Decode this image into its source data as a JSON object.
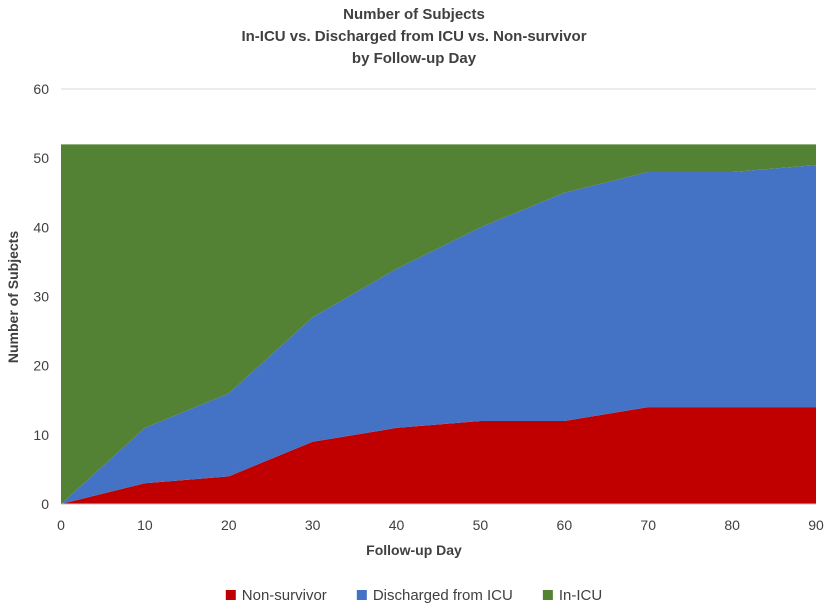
{
  "chart_data": {
    "type": "area",
    "stacked": true,
    "title_lines": [
      "Number of Subjects",
      "In-ICU vs. Discharged from ICU vs. Non-survivor",
      "by Follow-up Day"
    ],
    "xlabel": "Follow-up Day",
    "ylabel": "Number of Subjects",
    "x": [
      0,
      10,
      20,
      30,
      40,
      50,
      60,
      70,
      80,
      90
    ],
    "xlim": [
      0,
      90
    ],
    "ylim": [
      0,
      60
    ],
    "x_ticks": [
      0,
      10,
      20,
      30,
      40,
      50,
      60,
      70,
      80,
      90
    ],
    "y_ticks": [
      0,
      10,
      20,
      30,
      40,
      50,
      60
    ],
    "grid": "horizontal",
    "legend": "bottom",
    "series": [
      {
        "name": "Non-survivor",
        "color": "#c00000",
        "values": [
          0,
          3,
          4,
          9,
          11,
          12,
          12,
          14,
          14,
          14
        ]
      },
      {
        "name": "Discharged from ICU",
        "color": "#4472c4",
        "values": [
          0,
          8,
          12,
          18,
          23,
          28,
          33,
          34,
          34,
          35
        ]
      },
      {
        "name": "In-ICU",
        "color": "#548235",
        "values": [
          52,
          41,
          36,
          25,
          18,
          12,
          7,
          4,
          4,
          3
        ]
      }
    ]
  }
}
